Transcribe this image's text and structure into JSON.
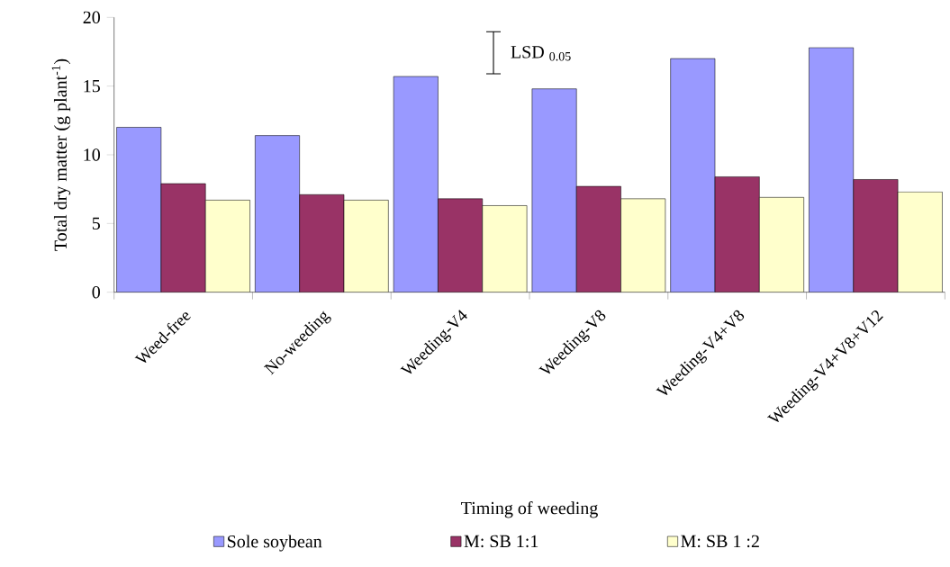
{
  "chart_data": {
    "type": "bar",
    "xlabel": "Timing of weeding",
    "ylabel": "Total dry matter  (g plant$^{-1}$)",
    "categories": [
      "Weed-free",
      "No-weeding",
      "Weeding-V4",
      "Weeding-V8",
      "Weeding-V4+V8",
      "Weeding-V4+V8+V12"
    ],
    "series": [
      {
        "name": "Sole soybean",
        "color": "#9999ff",
        "values": [
          12.0,
          11.4,
          15.7,
          14.8,
          17.0,
          17.8
        ]
      },
      {
        "name": "M: SB 1:1",
        "color": "#993366",
        "values": [
          7.9,
          7.1,
          6.8,
          7.7,
          8.4,
          8.2
        ]
      },
      {
        "name": "M: SB 1 :2",
        "color": "#ffffcc",
        "values": [
          6.7,
          6.7,
          6.3,
          6.8,
          6.9,
          7.3
        ]
      }
    ],
    "ylim": [
      0,
      20
    ],
    "yticks": [
      0,
      5,
      10,
      15,
      20
    ],
    "grid": false,
    "legend": "bottom",
    "annotations": [
      "LSD $_{0.05}$"
    ]
  }
}
